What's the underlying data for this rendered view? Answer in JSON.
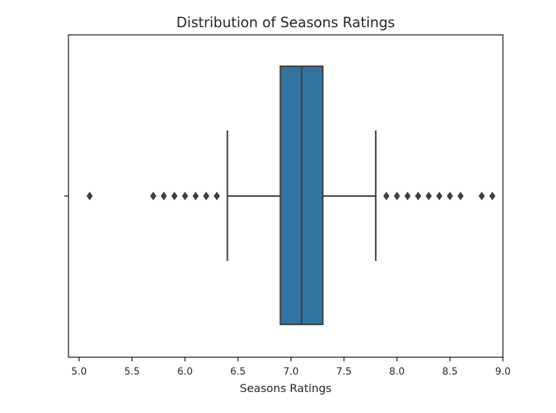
{
  "chart_data": {
    "type": "boxplot",
    "title": "Distribution of Seasons Ratings",
    "xlabel": "Seasons Ratings",
    "ylabel": "",
    "xlim": [
      4.9,
      9.0
    ],
    "xticks": [
      5.0,
      5.5,
      6.0,
      6.5,
      7.0,
      7.5,
      8.0,
      8.5,
      9.0
    ],
    "xtick_labels": [
      "5.0",
      "5.5",
      "6.0",
      "6.5",
      "7.0",
      "7.5",
      "8.0",
      "8.5",
      "9.0"
    ],
    "grid": false,
    "box": {
      "whisker_low": 6.4,
      "q1": 6.9,
      "median": 7.1,
      "q3": 7.3,
      "whisker_high": 7.8
    },
    "outliers": [
      5.1,
      5.7,
      5.8,
      5.9,
      6.0,
      6.1,
      6.2,
      6.3,
      7.9,
      8.0,
      8.1,
      8.2,
      8.3,
      8.4,
      8.5,
      8.6,
      8.8,
      8.9
    ],
    "colors": {
      "box_fill": "#3274a1",
      "line": "#3f3f3f",
      "axis": "#000000"
    }
  }
}
